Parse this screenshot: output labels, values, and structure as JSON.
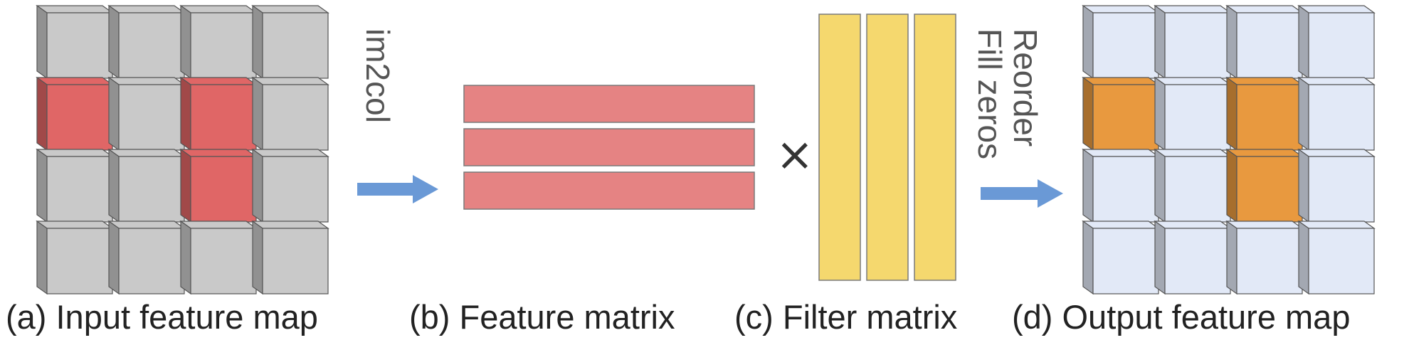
{
  "captions": {
    "a": "(a) Input feature map",
    "b": "(b) Feature matrix",
    "c": "(c) Filter matrix",
    "d": "(d) Output feature map"
  },
  "arrows": {
    "first_label": "im2col",
    "second_label_line1": "Reorder",
    "second_label_line2": "Fill zeros"
  },
  "operator": "×",
  "input_map": {
    "rows": 4,
    "cols": 4,
    "highlighted": [
      [
        1,
        0
      ],
      [
        1,
        2
      ],
      [
        2,
        2
      ]
    ]
  },
  "output_map": {
    "rows": 4,
    "cols": 4,
    "highlighted": [
      [
        1,
        0
      ],
      [
        1,
        2
      ],
      [
        2,
        2
      ]
    ]
  },
  "feature_matrix": {
    "rows": 3
  },
  "filter_matrix": {
    "columns": 3
  },
  "colors": {
    "input_cell": "#c9c9c9",
    "input_highlight": "#e06666",
    "output_cell": "#e2e9f7",
    "output_highlight": "#e8993f",
    "feature_row": "#e58383",
    "filter_col": "#f5d86e",
    "arrow": "#6a99d6"
  }
}
